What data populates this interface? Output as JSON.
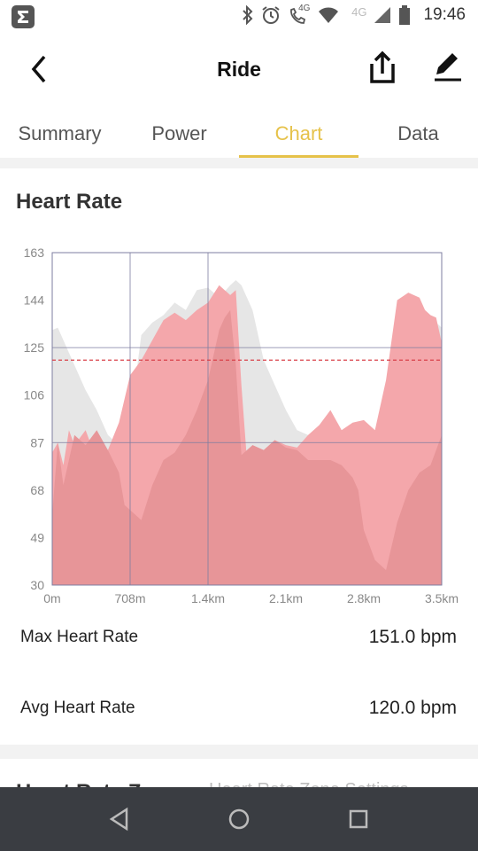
{
  "status": {
    "time": "19:46",
    "network_a": "4G",
    "network_b": "4G"
  },
  "toolbar": {
    "title": "Ride"
  },
  "tabs": [
    {
      "label": "Summary",
      "active": false
    },
    {
      "label": "Power",
      "active": false
    },
    {
      "label": "Chart",
      "active": true
    },
    {
      "label": "Data",
      "active": false
    }
  ],
  "section": {
    "title": "Heart Rate"
  },
  "chart_data": {
    "type": "area",
    "title": "",
    "y_ticks": [
      "163",
      "144",
      "125",
      "106",
      "87",
      "68",
      "49",
      "30"
    ],
    "x_ticks": [
      "0m",
      "708m",
      "1.4km",
      "2.1km",
      "2.8km",
      "3.5km"
    ],
    "ylim": [
      30,
      163
    ],
    "xlim": [
      0,
      3.5
    ],
    "grid": true,
    "average_line": 120,
    "colors": {
      "area_light": "#e6e6e6",
      "area_pink": "#f4a7ab",
      "area_dark": "#e79598",
      "avg_line": "#d9414a",
      "grid": "#7d7da0"
    },
    "series": [
      {
        "name": "",
        "x": [
          0,
          0.05,
          0.1,
          0.2,
          0.3,
          0.4,
          0.5,
          0.55,
          0.6,
          0.7,
          0.8,
          0.9,
          1.0,
          1.1,
          1.2,
          1.3,
          1.4,
          1.5,
          1.6,
          1.65,
          1.7,
          1.8,
          1.9,
          2.0,
          2.1,
          2.2,
          2.3,
          2.4,
          2.5,
          2.6,
          2.7,
          2.8,
          2.9,
          3.0,
          3.1,
          3.2,
          3.3,
          3.4,
          3.5
        ],
        "values": [
          132,
          133,
          128,
          118,
          108,
          100,
          90,
          88,
          85,
          95,
          130,
          135,
          138,
          143,
          140,
          148,
          149,
          145,
          150,
          152,
          150,
          140,
          120,
          110,
          100,
          92,
          90,
          88,
          86,
          88,
          85,
          88,
          90,
          95,
          110,
          130,
          140,
          137,
          133
        ]
      },
      {
        "name": "",
        "x": [
          0,
          0.05,
          0.1,
          0.15,
          0.2,
          0.3,
          0.4,
          0.5,
          0.6,
          0.7,
          0.8,
          0.9,
          1.0,
          1.1,
          1.2,
          1.3,
          1.4,
          1.5,
          1.6,
          1.65,
          1.7,
          1.75,
          1.8,
          1.9,
          2.0,
          2.1,
          2.2,
          2.3,
          2.4,
          2.5,
          2.6,
          2.7,
          2.8,
          2.9,
          3.0,
          3.1,
          3.2,
          3.3,
          3.35,
          3.4,
          3.45,
          3.5
        ],
        "values": [
          83,
          87,
          78,
          92,
          86,
          92,
          80,
          84,
          95,
          114,
          120,
          128,
          136,
          139,
          136,
          140,
          143,
          150,
          146,
          148,
          110,
          80,
          86,
          84,
          88,
          86,
          85,
          90,
          94,
          100,
          92,
          95,
          96,
          92,
          112,
          144,
          147,
          145,
          140,
          138,
          137,
          127
        ]
      },
      {
        "name": "",
        "x": [
          0,
          0.05,
          0.1,
          0.2,
          0.3,
          0.4,
          0.5,
          0.6,
          0.65,
          0.7,
          0.8,
          0.9,
          1.0,
          1.1,
          1.2,
          1.3,
          1.4,
          1.5,
          1.55,
          1.6,
          1.65,
          1.7,
          1.8,
          1.9,
          2.0,
          2.1,
          2.2,
          2.3,
          2.4,
          2.5,
          2.6,
          2.7,
          2.75,
          2.8,
          2.9,
          3.0,
          3.1,
          3.2,
          3.3,
          3.4,
          3.5
        ],
        "values": [
          58,
          87,
          70,
          90,
          86,
          92,
          84,
          75,
          62,
          60,
          56,
          70,
          80,
          83,
          90,
          100,
          112,
          132,
          137,
          140,
          118,
          82,
          86,
          84,
          88,
          85,
          84,
          80,
          80,
          80,
          78,
          73,
          68,
          52,
          40,
          36,
          55,
          68,
          75,
          78,
          90
        ]
      }
    ]
  },
  "stats": [
    {
      "label": "Max Heart Rate",
      "value": "151.0 bpm"
    },
    {
      "label": "Avg Heart Rate",
      "value": "120.0 bpm"
    }
  ],
  "next_section": {
    "title": "Heart Rate Z",
    "link": "Heart Rate Zone Settings"
  }
}
